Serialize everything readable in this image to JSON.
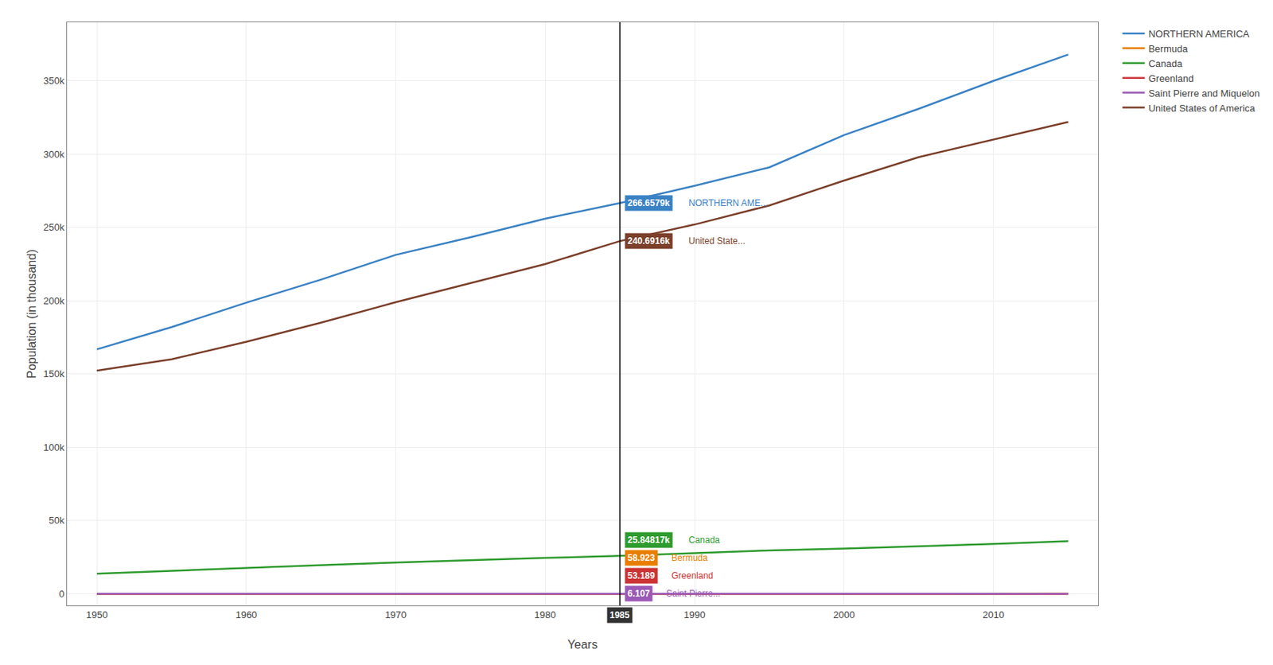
{
  "chart_data": {
    "type": "line",
    "xlabel": "Years",
    "ylabel": "Population (in thousand)",
    "x": [
      1950,
      1955,
      1960,
      1965,
      1970,
      1975,
      1980,
      1985,
      1990,
      1995,
      2000,
      2005,
      2010,
      2015
    ],
    "series": [
      {
        "name": "NORTHERN AMERICA",
        "color": "#3A82C4",
        "values": [
          166.8,
          182.0,
          198.7,
          214.4,
          231.3,
          243.3,
          256.0,
          266.6579,
          278.4,
          291.0,
          313.0,
          331.0,
          350.0,
          368.0
        ]
      },
      {
        "name": "Bermuda",
        "color": "#E87E00",
        "values": [
          0.037,
          0.041,
          0.043,
          0.046,
          0.05,
          0.053,
          0.055,
          0.058923,
          0.06,
          0.062,
          0.062,
          0.063,
          0.064,
          0.064
        ]
      },
      {
        "name": "Canada",
        "color": "#2E9B2E",
        "values": [
          13.7,
          15.7,
          17.9,
          19.6,
          21.3,
          23.0,
          24.5,
          25.84817,
          27.7,
          29.6,
          30.8,
          32.3,
          34.0,
          35.9
        ]
      },
      {
        "name": "Greenland",
        "color": "#CC3333",
        "values": [
          0.023,
          0.028,
          0.033,
          0.038,
          0.043,
          0.047,
          0.05,
          0.053189,
          0.055,
          0.056,
          0.056,
          0.057,
          0.057,
          0.056
        ]
      },
      {
        "name": "Saint Pierre and Miquelon",
        "color": "#9B59B6",
        "values": [
          0.005,
          0.005,
          0.005,
          0.005,
          0.005,
          0.006,
          0.006,
          0.006107,
          0.006,
          0.006,
          0.006,
          0.006,
          0.006,
          0.006
        ]
      },
      {
        "name": "United States of America",
        "color": "#7B3F2A",
        "values": [
          152.3,
          160.0,
          172.0,
          185.0,
          199.0,
          212.0,
          225.0,
          240.6916,
          252.0,
          265.0,
          282.0,
          298.0,
          310.0,
          322.0
        ]
      }
    ],
    "xlim": [
      1948,
      2017
    ],
    "xticks": [
      1950,
      1960,
      1970,
      1980,
      1990,
      2000,
      2010
    ],
    "ylim": [
      -8,
      390
    ],
    "yticks": [
      0,
      {
        "value": 50,
        "label": "50k"
      },
      {
        "value": 100,
        "label": "100k"
      },
      {
        "value": 150,
        "label": "150k"
      },
      {
        "value": 200,
        "label": "200k"
      },
      {
        "value": 250,
        "label": "250k"
      },
      {
        "value": 300,
        "label": "300k"
      },
      {
        "value": 350,
        "label": "350k"
      }
    ],
    "grid": true,
    "legend": "upper right",
    "annotations": [
      {
        "text": "1985",
        "x": 1985
      },
      {
        "text": "266.6579k",
        "label": "NORTHERN AME...",
        "x": 1985,
        "y": 266.6579,
        "color": "#3A82C4"
      },
      {
        "text": "240.6916k",
        "label": "United State...",
        "x": 1985,
        "y": 240.6916,
        "color": "#7B3F2A"
      },
      {
        "text": "25.84817k",
        "label": "Canada",
        "x": 1985,
        "y": 25.84817,
        "color": "#2E9B2E"
      },
      {
        "text": "58.923",
        "label": "Bermuda",
        "x": 1985,
        "y": 0.058923,
        "color": "#E87E00"
      },
      {
        "text": "53.189",
        "label": "Greenland",
        "x": 1985,
        "y": 0.053189,
        "color": "#CC3333"
      },
      {
        "text": "6.107",
        "label": "Saint Pierre...",
        "x": 1985,
        "y": 0.006107,
        "color": "#9B59B6"
      }
    ]
  }
}
